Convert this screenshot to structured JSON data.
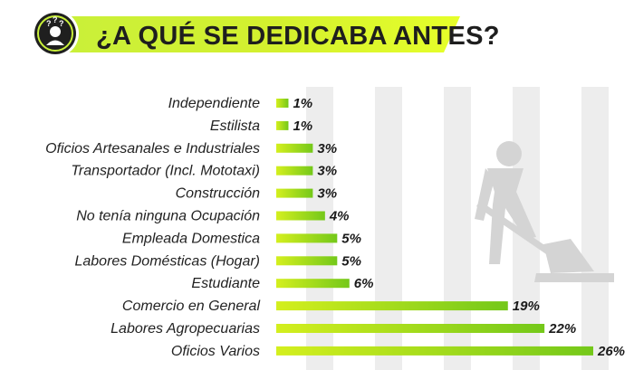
{
  "header": {
    "title": "¿A QUÉ SE DEDICABA ANTES?",
    "icon": "confused-person-icon"
  },
  "decoration": {
    "illustration": "worker-shovel-icon"
  },
  "colors": {
    "bar_start": "#d4ef1e",
    "bar_end": "#74c81a",
    "header_band": "#d2f02e",
    "stripe": "#ededed"
  },
  "chart_data": {
    "type": "bar",
    "orientation": "horizontal",
    "categories": [
      "Independiente",
      "Estilista",
      "Oficios Artesanales e Industriales",
      "Transportador (Incl. Mototaxi)",
      "Construcción",
      "No tenía ninguna Ocupación",
      "Empleada Domestica",
      "Labores Domésticas (Hogar)",
      "Estudiante",
      "Comercio en General",
      "Labores Agropecuarias",
      "Oficios Varios"
    ],
    "values": [
      1,
      1,
      3,
      3,
      3,
      4,
      5,
      5,
      6,
      19,
      22,
      26
    ],
    "value_labels": [
      "1%",
      "1%",
      "3%",
      "3%",
      "3%",
      "4%",
      "5%",
      "5%",
      "6%",
      "19%",
      "22%",
      "26%"
    ],
    "unit": "%",
    "xlim": [
      0,
      26
    ],
    "grid": false,
    "legend": "none"
  }
}
